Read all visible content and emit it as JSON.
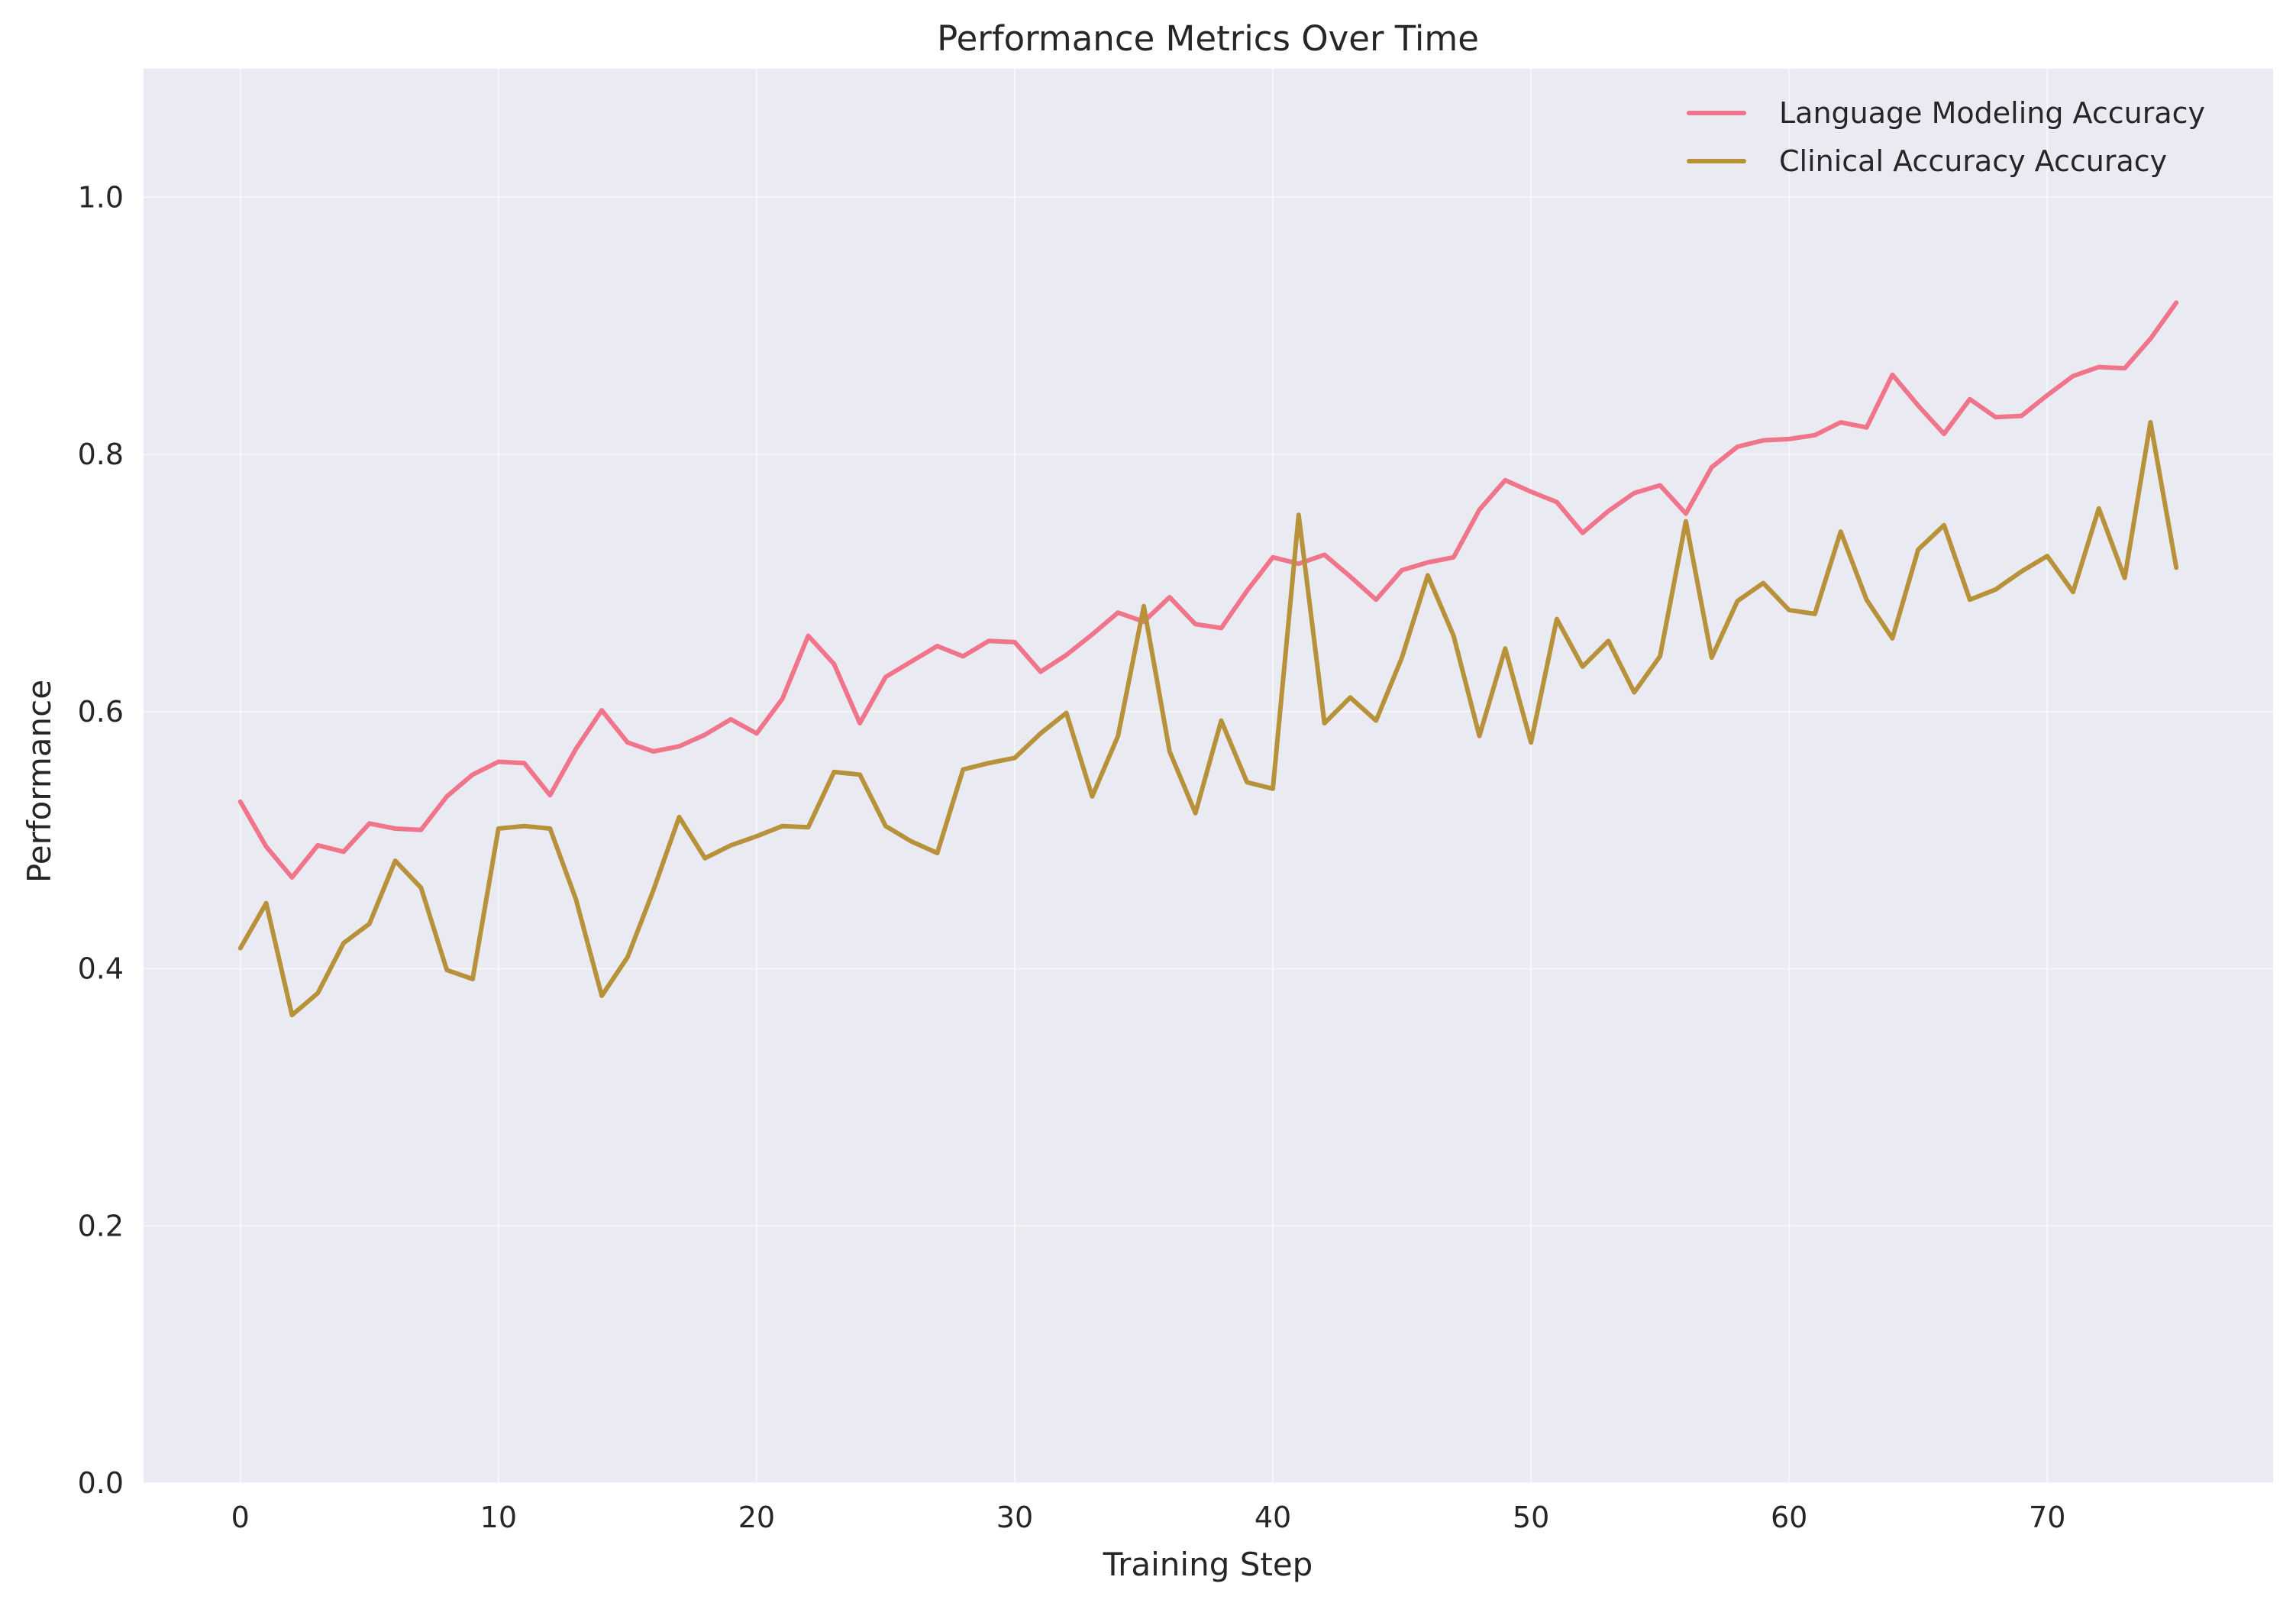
{
  "chart_data": {
    "type": "line",
    "title": "Performance Metrics Over Time",
    "xlabel": "Training Step",
    "ylabel": "Performance",
    "xlim": [
      -3.75,
      78.75
    ],
    "ylim": [
      0,
      1.1
    ],
    "xticks": [
      0,
      10,
      20,
      30,
      40,
      50,
      60,
      70
    ],
    "yticks": [
      0.0,
      0.2,
      0.4,
      0.6,
      0.8,
      1.0
    ],
    "xtick_labels": [
      "0",
      "10",
      "20",
      "30",
      "40",
      "50",
      "60",
      "70"
    ],
    "ytick_labels": [
      "0.0",
      "0.2",
      "0.4",
      "0.6",
      "0.8",
      "1.0"
    ],
    "grid": true,
    "legend_position": "upper right",
    "background": "#eaeaf2",
    "series": [
      {
        "name": "Language Modeling Accuracy",
        "color": "#f0758a",
        "values": [
          0.53,
          0.495,
          0.471,
          0.496,
          0.491,
          0.513,
          0.509,
          0.508,
          0.534,
          0.551,
          0.561,
          0.56,
          0.535,
          0.571,
          0.601,
          0.576,
          0.569,
          0.573,
          0.582,
          0.594,
          0.583,
          0.61,
          0.659,
          0.637,
          0.591,
          0.627,
          0.639,
          0.651,
          0.643,
          0.655,
          0.654,
          0.631,
          0.644,
          0.66,
          0.677,
          0.67,
          0.689,
          0.668,
          0.665,
          0.694,
          0.72,
          0.715,
          0.722,
          0.705,
          0.687,
          0.71,
          0.716,
          0.72,
          0.757,
          0.78,
          0.771,
          0.763,
          0.739,
          0.756,
          0.77,
          0.776,
          0.754,
          0.79,
          0.806,
          0.811,
          0.812,
          0.815,
          0.825,
          0.821,
          0.862,
          0.838,
          0.816,
          0.843,
          0.829,
          0.83,
          0.846,
          0.861,
          0.868,
          0.867,
          0.89,
          0.918
        ]
      },
      {
        "name": "Clinical Accuracy Accuracy",
        "color": "#b8923a",
        "values": [
          0.416,
          0.451,
          0.364,
          0.381,
          0.42,
          0.435,
          0.484,
          0.463,
          0.399,
          0.392,
          0.509,
          0.511,
          0.509,
          0.454,
          0.379,
          0.409,
          0.461,
          0.518,
          0.486,
          0.496,
          0.503,
          0.511,
          0.51,
          0.553,
          0.551,
          0.511,
          0.499,
          0.49,
          0.555,
          0.56,
          0.564,
          0.583,
          0.599,
          0.534,
          0.581,
          0.682,
          0.569,
          0.521,
          0.593,
          0.545,
          0.54,
          0.753,
          0.591,
          0.611,
          0.593,
          0.642,
          0.706,
          0.659,
          0.581,
          0.649,
          0.576,
          0.672,
          0.635,
          0.655,
          0.615,
          0.643,
          0.748,
          0.642,
          0.686,
          0.7,
          0.679,
          0.676,
          0.74,
          0.687,
          0.657,
          0.726,
          0.745,
          0.687,
          0.695,
          0.709,
          0.721,
          0.693,
          0.758,
          0.704,
          0.825,
          0.712
        ]
      }
    ]
  }
}
